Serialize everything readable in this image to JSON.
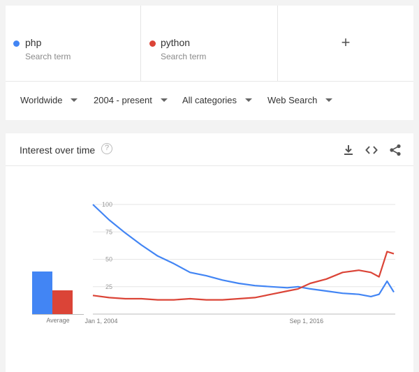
{
  "terms": [
    {
      "name": "php",
      "subtitle": "Search term",
      "color": "#4285f4"
    },
    {
      "name": "python",
      "subtitle": "Search term",
      "color": "#db4437"
    }
  ],
  "add_term_label": "+",
  "filters": {
    "region": "Worldwide",
    "time_range": "2004 - present",
    "category": "All categories",
    "property": "Web Search"
  },
  "chart_card": {
    "title": "Interest over time",
    "help_glyph": "?",
    "icons": [
      "download-icon",
      "embed-icon",
      "share-icon"
    ],
    "average_label": "Average"
  },
  "chart_data": [
    {
      "type": "bar",
      "categories": [
        "Average"
      ],
      "series": [
        {
          "name": "php",
          "values": [
            38
          ],
          "color": "#4285f4"
        },
        {
          "name": "python",
          "values": [
            21
          ],
          "color": "#db4437"
        }
      ],
      "ylim": [
        0,
        100
      ]
    },
    {
      "type": "line",
      "x": [
        "2004-01",
        "2005-01",
        "2006-01",
        "2007-01",
        "2008-01",
        "2009-01",
        "2010-01",
        "2011-01",
        "2012-01",
        "2013-01",
        "2014-01",
        "2015-01",
        "2016-01",
        "2016-09",
        "2017-06",
        "2018-06",
        "2019-06",
        "2020-06",
        "2021-03",
        "2021-09",
        "2022-03",
        "2022-08"
      ],
      "series": [
        {
          "name": "php",
          "color": "#4285f4",
          "values": [
            100,
            86,
            74,
            63,
            53,
            46,
            38,
            35,
            31,
            28,
            26,
            25,
            24,
            25,
            23,
            21,
            19,
            18,
            16,
            18,
            30,
            20
          ]
        },
        {
          "name": "python",
          "color": "#db4437",
          "values": [
            17,
            15,
            14,
            14,
            13,
            13,
            14,
            13,
            13,
            14,
            15,
            18,
            21,
            23,
            28,
            32,
            38,
            40,
            38,
            34,
            57,
            55
          ]
        }
      ],
      "x_tick_labels": [
        "Jan 1, 2004",
        "Sep 1, 2016"
      ],
      "x_tick_positions": [
        "2004-01",
        "2016-09"
      ],
      "y_ticks": [
        25,
        50,
        75,
        100
      ],
      "ylim": [
        0,
        100
      ],
      "grid": true
    }
  ]
}
